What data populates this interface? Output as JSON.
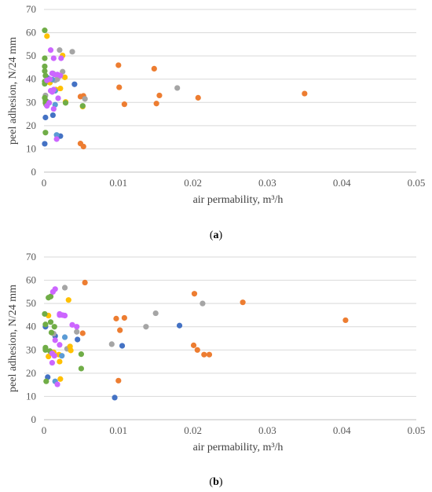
{
  "panels": {
    "a_open": "(",
    "a_letter": "a",
    "a_close": ")",
    "b_open": "(",
    "b_letter": "b",
    "b_close": ")"
  },
  "chart_data": [
    {
      "id": "a",
      "type": "scatter",
      "xlabel": "air permability, m³/h",
      "ylabel": "peel adhesion, N/24 mm",
      "xlim": [
        0,
        0.05
      ],
      "ylim": [
        0,
        70
      ],
      "xticks": [
        "0",
        "0.01",
        "0.02",
        "0.03",
        "0.04",
        "0.05"
      ],
      "yticks": [
        "0",
        "10",
        "20",
        "30",
        "40",
        "50",
        "60",
        "70"
      ],
      "grid": "horizontal",
      "series": [
        {
          "color": "#4472c4",
          "points": [
            [
              0.0001,
              12.2
            ],
            [
              0.0002,
              23.5
            ],
            [
              0.0003,
              30.5
            ],
            [
              0.0005,
              40.5
            ],
            [
              0.0012,
              24.5
            ],
            [
              0.0022,
              15.5
            ],
            [
              0.0041,
              37.8
            ]
          ]
        },
        {
          "color": "#ed7d31",
          "points": [
            [
              0.0049,
              12.3
            ],
            [
              0.0053,
              11.0
            ],
            [
              0.0049,
              32.5
            ],
            [
              0.0053,
              32.8
            ],
            [
              0.01,
              46.0
            ],
            [
              0.0101,
              36.5
            ],
            [
              0.0108,
              29.2
            ],
            [
              0.0148,
              44.5
            ],
            [
              0.0151,
              29.5
            ],
            [
              0.0155,
              33.0
            ],
            [
              0.0207,
              32.0
            ],
            [
              0.035,
              33.8
            ]
          ]
        },
        {
          "color": "#a5a5a5",
          "points": [
            [
              0.0002,
              33.0
            ],
            [
              0.0012,
              42.5
            ],
            [
              0.0015,
              39.5
            ],
            [
              0.0018,
              40.0
            ],
            [
              0.0021,
              52.5
            ],
            [
              0.0025,
              43.2
            ],
            [
              0.0038,
              51.8
            ],
            [
              0.0055,
              31.5
            ],
            [
              0.0179,
              36.2
            ]
          ]
        },
        {
          "color": "#ffc000",
          "points": [
            [
              0.0004,
              58.5
            ],
            [
              0.0005,
              29.5
            ],
            [
              0.0008,
              38.5
            ],
            [
              0.0016,
              35.5
            ],
            [
              0.0022,
              36.0
            ],
            [
              0.0025,
              50.2
            ],
            [
              0.0028,
              40.8
            ],
            [
              0.0029,
              30.2
            ],
            [
              0.0052,
              28.2
            ]
          ]
        },
        {
          "color": "#5b9bd5",
          "points": [
            [
              0.0011,
              39.8
            ],
            [
              0.0015,
              35.0
            ],
            [
              0.0017,
              16.0
            ],
            [
              0.0015,
              29.0
            ]
          ]
        },
        {
          "color": "#70ad47",
          "points": [
            [
              0.0001,
              61.0
            ],
            [
              0.0001,
              49.0
            ],
            [
              0.0001,
              45.5
            ],
            [
              0.0001,
              43.5
            ],
            [
              0.0002,
              41.5
            ],
            [
              0.0001,
              39.0
            ],
            [
              0.0001,
              38.0
            ],
            [
              0.0001,
              32.0
            ],
            [
              0.0002,
              30.8
            ],
            [
              0.0002,
              29.8
            ],
            [
              0.0003,
              29.0
            ],
            [
              0.0002,
              17.0
            ],
            [
              0.0052,
              28.5
            ],
            [
              0.0029,
              29.8
            ]
          ]
        },
        {
          "color": "#cc66ff",
          "points": [
            [
              0.0009,
              52.5
            ],
            [
              0.0013,
              49.0
            ],
            [
              0.0023,
              49.0
            ],
            [
              0.0004,
              39.5
            ],
            [
              0.0008,
              40.0
            ],
            [
              0.0011,
              42.5
            ],
            [
              0.0014,
              42.0
            ],
            [
              0.0018,
              42.0
            ],
            [
              0.0022,
              41.5
            ],
            [
              0.0009,
              35.0
            ],
            [
              0.0013,
              35.5
            ],
            [
              0.0019,
              31.8
            ],
            [
              0.0004,
              28.5
            ],
            [
              0.0013,
              27.2
            ],
            [
              0.0017,
              14.2
            ],
            [
              0.0007,
              29.8
            ],
            [
              0.0011,
              34.5
            ]
          ]
        }
      ]
    },
    {
      "id": "b",
      "type": "scatter",
      "xlabel": "air permability, m³/h",
      "ylabel": "peel adhesion, N/24 mm",
      "xlim": [
        0,
        0.05
      ],
      "ylim": [
        0,
        70
      ],
      "xticks": [
        "0",
        "0.01",
        "0.02",
        "0.03",
        "0.04",
        "0.05"
      ],
      "yticks": [
        "0",
        "10",
        "20",
        "30",
        "40",
        "50",
        "60",
        "70"
      ],
      "grid": "horizontal",
      "series": [
        {
          "color": "#4472c4",
          "points": [
            [
              0.0002,
              40.0
            ],
            [
              0.0005,
              18.3
            ],
            [
              0.0015,
              36.0
            ],
            [
              0.0045,
              34.5
            ],
            [
              0.0095,
              9.5
            ],
            [
              0.0105,
              31.8
            ],
            [
              0.0182,
              40.5
            ]
          ]
        },
        {
          "color": "#ed7d31",
          "points": [
            [
              0.0055,
              59.0
            ],
            [
              0.0052,
              37.2
            ],
            [
              0.0097,
              43.5
            ],
            [
              0.01,
              16.8
            ],
            [
              0.0102,
              38.5
            ],
            [
              0.0108,
              43.8
            ],
            [
              0.0202,
              54.2
            ],
            [
              0.0201,
              32.0
            ],
            [
              0.0206,
              30.0
            ],
            [
              0.0215,
              28.0
            ],
            [
              0.0222,
              28.0
            ],
            [
              0.0267,
              50.5
            ],
            [
              0.0405,
              42.8
            ]
          ]
        },
        {
          "color": "#a5a5a5",
          "points": [
            [
              0.0013,
              37.0
            ],
            [
              0.0028,
              56.8
            ],
            [
              0.0031,
              30.5
            ],
            [
              0.0044,
              37.8
            ],
            [
              0.0091,
              32.5
            ],
            [
              0.0137,
              40.0
            ],
            [
              0.015,
              45.8
            ],
            [
              0.0213,
              50.0
            ]
          ]
        },
        {
          "color": "#ffc000",
          "points": [
            [
              0.0006,
              44.8
            ],
            [
              0.0006,
              27.2
            ],
            [
              0.0013,
              29.0
            ],
            [
              0.002,
              28.0
            ],
            [
              0.0022,
              17.5
            ],
            [
              0.0021,
              25.0
            ],
            [
              0.0033,
              51.5
            ],
            [
              0.0035,
              31.5
            ],
            [
              0.0036,
              29.8
            ]
          ]
        },
        {
          "color": "#5b9bd5",
          "points": [
            [
              0.0015,
              16.5
            ],
            [
              0.0024,
              27.5
            ],
            [
              0.0028,
              35.5
            ]
          ]
        },
        {
          "color": "#70ad47",
          "points": [
            [
              0.0001,
              45.5
            ],
            [
              0.0002,
              41.0
            ],
            [
              0.0002,
              31.0
            ],
            [
              0.0002,
              30.5
            ],
            [
              0.0002,
              30.0
            ],
            [
              0.0003,
              16.5
            ],
            [
              0.0006,
              52.5
            ],
            [
              0.0009,
              53.0
            ],
            [
              0.0009,
              42.0
            ],
            [
              0.001,
              37.5
            ],
            [
              0.0014,
              40.0
            ],
            [
              0.005,
              22.0
            ],
            [
              0.005,
              28.2
            ],
            [
              0.0008,
              29.5
            ]
          ]
        },
        {
          "color": "#cc66ff",
          "points": [
            [
              0.0012,
              55.0
            ],
            [
              0.0015,
              56.2
            ],
            [
              0.0021,
              45.5
            ],
            [
              0.0025,
              45.0
            ],
            [
              0.0028,
              44.8
            ],
            [
              0.0038,
              40.8
            ],
            [
              0.0044,
              40.0
            ],
            [
              0.0011,
              28.5
            ],
            [
              0.0014,
              27.5
            ],
            [
              0.0011,
              24.5
            ],
            [
              0.0021,
              32.2
            ],
            [
              0.0015,
              34.2
            ],
            [
              0.0018,
              15.2
            ],
            [
              0.0021,
              45.0
            ]
          ]
        }
      ]
    }
  ]
}
